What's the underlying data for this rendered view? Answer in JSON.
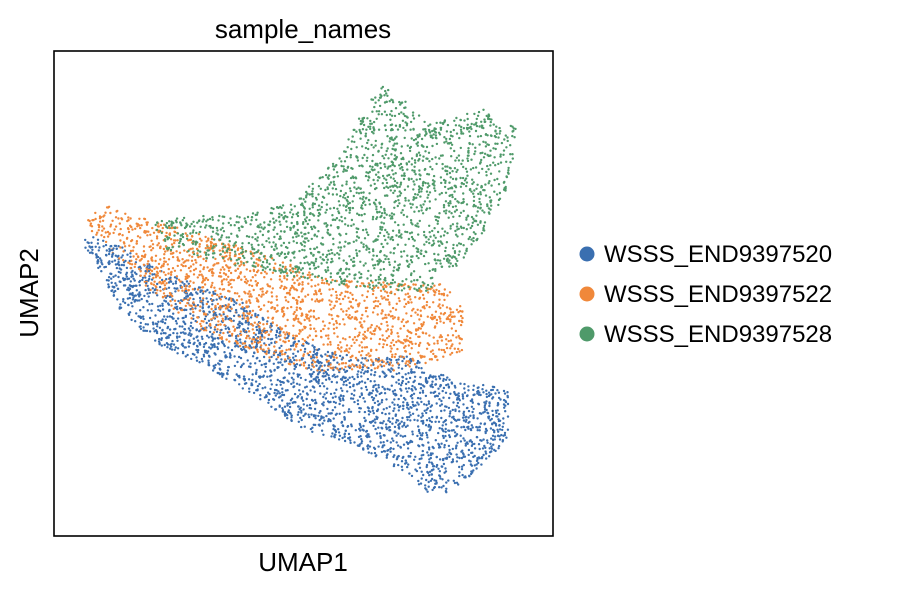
{
  "chart_data": {
    "type": "scatter",
    "title": "sample_names",
    "xlabel": "UMAP1",
    "ylabel": "UMAP2",
    "xlim": [
      0,
      100
    ],
    "ylim": [
      0,
      100
    ],
    "ticks_shown": false,
    "grid": false,
    "legend_position": "right",
    "series": [
      {
        "name": "WSSS_END9397520",
        "color": "#3a6fb0",
        "cluster_outline": [
          [
            5,
            61
          ],
          [
            8,
            57
          ],
          [
            13,
            47
          ],
          [
            20,
            40
          ],
          [
            30,
            35
          ],
          [
            40,
            29
          ],
          [
            50,
            22
          ],
          [
            60,
            19
          ],
          [
            70,
            13
          ],
          [
            75,
            9
          ],
          [
            80,
            9
          ],
          [
            86,
            15
          ],
          [
            91,
            20
          ],
          [
            91,
            30
          ],
          [
            87,
            31
          ],
          [
            80,
            32
          ],
          [
            72,
            37
          ],
          [
            60,
            37
          ],
          [
            48,
            41
          ],
          [
            38,
            48
          ],
          [
            28,
            52
          ],
          [
            20,
            56
          ],
          [
            13,
            60
          ],
          [
            8,
            62
          ]
        ],
        "approx_points": 5200
      },
      {
        "name": "WSSS_END9397522",
        "color": "#f0883a",
        "cluster_outline": [
          [
            6,
            66
          ],
          [
            11,
            68
          ],
          [
            20,
            65
          ],
          [
            30,
            62
          ],
          [
            40,
            59
          ],
          [
            55,
            53
          ],
          [
            70,
            52
          ],
          [
            78,
            52
          ],
          [
            82,
            47
          ],
          [
            82,
            38
          ],
          [
            70,
            34
          ],
          [
            60,
            34
          ],
          [
            50,
            34
          ],
          [
            40,
            38
          ],
          [
            30,
            42
          ],
          [
            20,
            50
          ],
          [
            12,
            58
          ],
          [
            8,
            62
          ]
        ],
        "approx_points": 3600
      },
      {
        "name": "WSSS_END9397528",
        "color": "#4f9a6a",
        "cluster_outline": [
          [
            20,
            65
          ],
          [
            30,
            66
          ],
          [
            38,
            66
          ],
          [
            48,
            69
          ],
          [
            56,
            77
          ],
          [
            62,
            88
          ],
          [
            66,
            93
          ],
          [
            70,
            90
          ],
          [
            75,
            85
          ],
          [
            86,
            88
          ],
          [
            93,
            84
          ],
          [
            91,
            72
          ],
          [
            86,
            62
          ],
          [
            81,
            56
          ],
          [
            76,
            51
          ],
          [
            72,
            49
          ],
          [
            62,
            51
          ],
          [
            50,
            53
          ],
          [
            35,
            56
          ],
          [
            22,
            59
          ]
        ],
        "approx_points": 4200
      }
    ]
  }
}
